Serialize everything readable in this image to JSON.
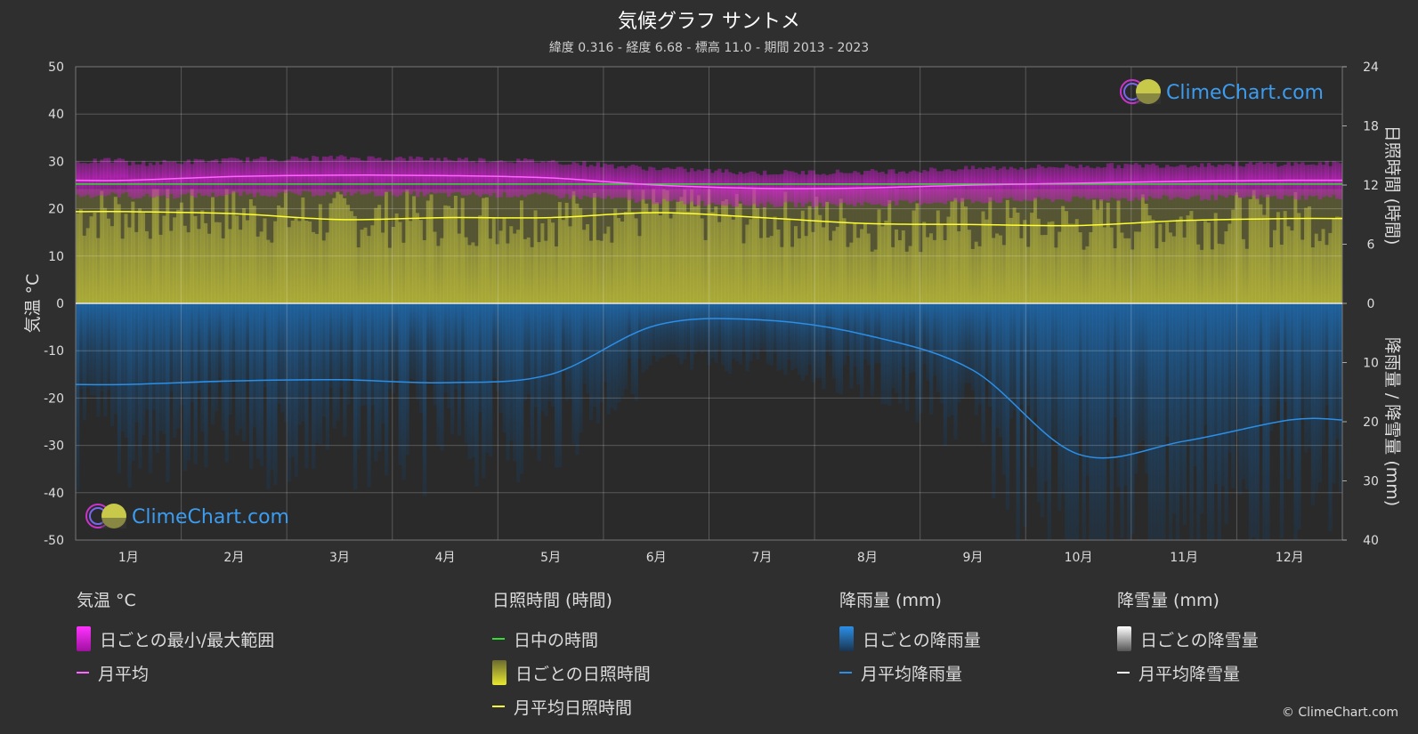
{
  "title": "気候グラフ サントメ",
  "subtitle": "緯度 0.316 - 経度 6.68 - 標高 11.0 - 期間 2013 - 2023",
  "watermark": "ClimeChart.com",
  "copyright": "© ClimeChart.com",
  "colors": {
    "background": "#2f2f2f",
    "temp_range": "#e020e0",
    "temp_avg": "#ff66ff",
    "daylight": "#33dd33",
    "sunshine": "#cccc33",
    "sunshine_avg": "#ffff33",
    "rain": "#1e6fb8",
    "rain_avg": "#2b8fe8",
    "snow": "#ffffff",
    "logo_text": "#3b9cf0"
  },
  "legend": {
    "temperature": {
      "header": "気温 °C",
      "range_label": "日ごとの最小/最大範囲",
      "avg_label": "月平均"
    },
    "sunshine": {
      "header": "日照時間 (時間)",
      "daylight_label": "日中の時間",
      "daily_label": "日ごとの日照時間",
      "avg_label": "月平均日照時間"
    },
    "rain": {
      "header": "降雨量 (mm)",
      "daily_label": "日ごとの降雨量",
      "avg_label": "月平均降雨量"
    },
    "snow": {
      "header": "降雪量 (mm)",
      "daily_label": "日ごとの降雪量",
      "avg_label": "月平均降雪量"
    }
  },
  "chart_data": {
    "type": "line",
    "categories": [
      "1月",
      "2月",
      "3月",
      "4月",
      "5月",
      "6月",
      "7月",
      "8月",
      "9月",
      "10月",
      "11月",
      "12月"
    ],
    "y_left": {
      "label": "気温 °C",
      "range": [
        -50,
        50
      ],
      "ticks": [
        50,
        40,
        30,
        20,
        10,
        0,
        -10,
        -20,
        -30,
        -40,
        -50
      ]
    },
    "y_right_top": {
      "label": "日照時間 (時間)",
      "range": [
        0,
        24
      ],
      "ticks": [
        24,
        18,
        12,
        6,
        0
      ]
    },
    "y_right_bottom": {
      "label": "降雨量 / 降雪量 (mm)",
      "range": [
        0,
        40
      ],
      "ticks": [
        0,
        10,
        20,
        30,
        40
      ]
    },
    "grid": true,
    "series": [
      {
        "name": "月平均",
        "axis": "temperature",
        "values": [
          26.0,
          26.8,
          27.1,
          27.0,
          26.5,
          25.0,
          24.3,
          24.4,
          25.0,
          25.4,
          25.8,
          26.0
        ]
      },
      {
        "name": "日ごとの最小/最大範囲 (最小)",
        "axis": "temperature",
        "values": [
          22.5,
          23.0,
          23.2,
          23.0,
          22.8,
          21.5,
          20.8,
          21.0,
          21.6,
          22.0,
          22.3,
          22.4
        ]
      },
      {
        "name": "日ごとの最小/最大範囲 (最大)",
        "axis": "temperature",
        "values": [
          29.5,
          30.3,
          30.8,
          30.5,
          30.0,
          28.5,
          27.6,
          27.8,
          28.5,
          29.0,
          29.3,
          29.5
        ]
      },
      {
        "name": "日中の時間",
        "axis": "sunshine",
        "values": [
          12.1,
          12.1,
          12.1,
          12.1,
          12.1,
          12.1,
          12.1,
          12.1,
          12.1,
          12.1,
          12.1,
          12.1
        ]
      },
      {
        "name": "月平均日照時間",
        "axis": "sunshine",
        "values": [
          9.3,
          9.1,
          8.5,
          8.7,
          8.7,
          9.2,
          8.7,
          8.1,
          8.0,
          7.9,
          8.4,
          8.6
        ]
      },
      {
        "name": "月平均降雨量",
        "axis": "rain",
        "values": [
          13.7,
          13.1,
          12.9,
          13.4,
          12.0,
          3.7,
          2.8,
          5.4,
          11.3,
          25.5,
          23.3,
          19.7
        ]
      },
      {
        "name": "月平均降雪量",
        "axis": "snow",
        "values": [
          0,
          0,
          0,
          0,
          0,
          0,
          0,
          0,
          0,
          0,
          0,
          0
        ]
      }
    ]
  }
}
